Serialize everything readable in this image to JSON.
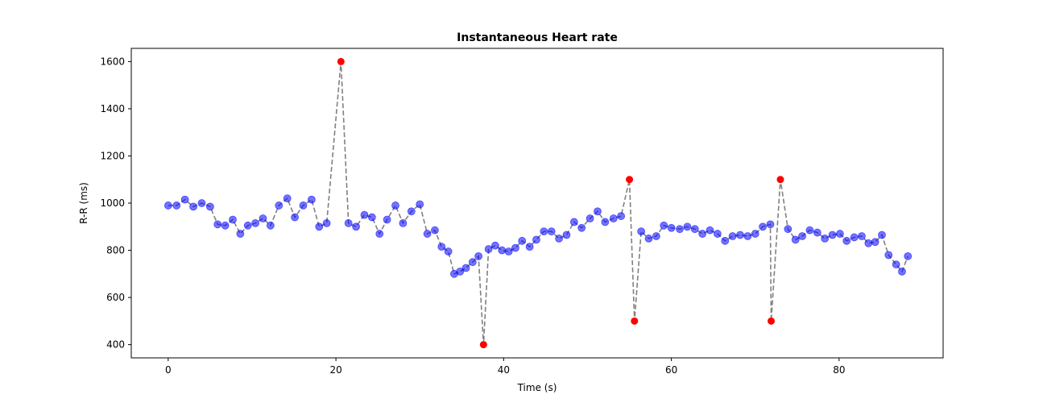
{
  "chart_data": {
    "type": "scatter",
    "title": "Instantaneous Heart rate",
    "xlabel": "Time (s)",
    "ylabel": "R-R (ms)",
    "xlim": [
      -4.4,
      92.4
    ],
    "ylim": [
      344,
      1656
    ],
    "xticks": [
      0,
      20,
      40,
      60,
      80
    ],
    "yticks": [
      400,
      600,
      800,
      1000,
      1200,
      1400,
      1600
    ],
    "grid": false,
    "legend": "none",
    "line_color": "#808080",
    "normal_color": "#0000ff",
    "outlier_color": "#ff0000",
    "series": [
      {
        "kind": "normal",
        "points": [
          [
            0.0,
            990
          ],
          [
            1.0,
            990
          ],
          [
            2.0,
            1015
          ],
          [
            3.0,
            985
          ],
          [
            4.0,
            1000
          ],
          [
            5.0,
            985
          ],
          [
            5.9,
            910
          ],
          [
            6.8,
            905
          ],
          [
            7.7,
            930
          ],
          [
            8.6,
            870
          ],
          [
            9.5,
            905
          ],
          [
            10.4,
            915
          ],
          [
            11.3,
            935
          ],
          [
            12.2,
            905
          ],
          [
            13.2,
            990
          ],
          [
            14.2,
            1020
          ],
          [
            15.1,
            940
          ],
          [
            16.1,
            990
          ],
          [
            17.1,
            1015
          ],
          [
            18.0,
            900
          ],
          [
            18.9,
            915
          ],
          [
            21.5,
            915
          ],
          [
            22.4,
            900
          ],
          [
            23.4,
            950
          ],
          [
            24.3,
            940
          ],
          [
            25.2,
            870
          ],
          [
            26.1,
            930
          ],
          [
            27.1,
            990
          ],
          [
            28.0,
            915
          ],
          [
            29.0,
            965
          ],
          [
            30.0,
            995
          ],
          [
            30.9,
            870
          ],
          [
            31.8,
            885
          ],
          [
            32.6,
            815
          ],
          [
            33.4,
            795
          ],
          [
            34.1,
            700
          ],
          [
            34.8,
            710
          ],
          [
            35.5,
            725
          ],
          [
            36.3,
            750
          ],
          [
            37.0,
            775
          ],
          [
            38.2,
            805
          ],
          [
            39.0,
            820
          ],
          [
            39.8,
            800
          ],
          [
            40.6,
            795
          ],
          [
            41.4,
            810
          ],
          [
            42.2,
            840
          ],
          [
            43.1,
            815
          ],
          [
            43.9,
            845
          ],
          [
            44.8,
            880
          ],
          [
            45.7,
            880
          ],
          [
            46.6,
            850
          ],
          [
            47.5,
            865
          ],
          [
            48.4,
            920
          ],
          [
            49.3,
            895
          ],
          [
            50.3,
            935
          ],
          [
            51.2,
            965
          ],
          [
            52.1,
            920
          ],
          [
            53.1,
            935
          ],
          [
            54.0,
            945
          ],
          [
            56.4,
            880
          ],
          [
            57.3,
            850
          ],
          [
            58.2,
            860
          ],
          [
            59.1,
            905
          ],
          [
            60.0,
            895
          ],
          [
            61.0,
            890
          ],
          [
            61.9,
            900
          ],
          [
            62.8,
            890
          ],
          [
            63.7,
            870
          ],
          [
            64.6,
            885
          ],
          [
            65.5,
            870
          ],
          [
            66.4,
            840
          ],
          [
            67.3,
            860
          ],
          [
            68.2,
            865
          ],
          [
            69.1,
            860
          ],
          [
            70.0,
            870
          ],
          [
            70.9,
            900
          ],
          [
            71.8,
            910
          ],
          [
            73.9,
            890
          ],
          [
            74.8,
            845
          ],
          [
            75.6,
            860
          ],
          [
            76.5,
            885
          ],
          [
            77.4,
            875
          ],
          [
            78.3,
            850
          ],
          [
            79.2,
            865
          ],
          [
            80.1,
            870
          ],
          [
            80.9,
            840
          ],
          [
            81.8,
            855
          ],
          [
            82.7,
            860
          ],
          [
            83.5,
            830
          ],
          [
            84.3,
            835
          ],
          [
            85.1,
            865
          ],
          [
            85.9,
            780
          ],
          [
            86.8,
            740
          ],
          [
            87.5,
            710
          ],
          [
            88.2,
            775
          ]
        ]
      },
      {
        "kind": "outlier",
        "points": [
          [
            20.6,
            1600
          ],
          [
            37.6,
            400
          ],
          [
            55.0,
            1100
          ],
          [
            55.6,
            500
          ],
          [
            71.9,
            500
          ],
          [
            73.0,
            1100
          ]
        ]
      }
    ]
  }
}
